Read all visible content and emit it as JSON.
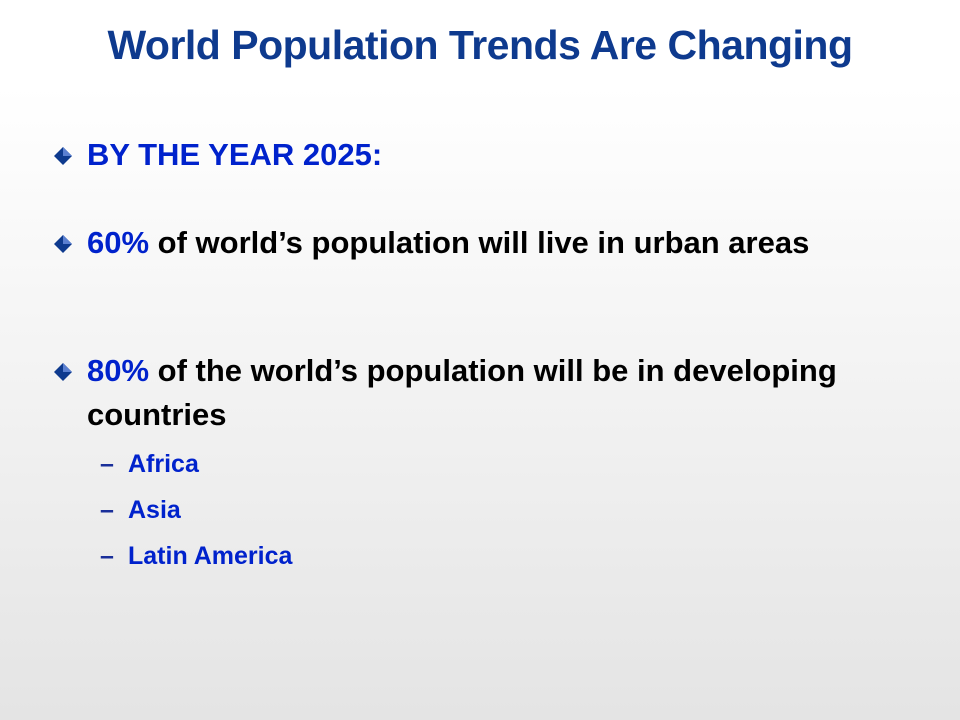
{
  "slide": {
    "title": "World Population Trends Are Changing",
    "bullets": [
      {
        "highlight": "BY THE YEAR 2025:",
        "rest": ""
      },
      {
        "highlight": "60%",
        "rest": " of world’s population will live in urban areas"
      },
      {
        "highlight": "80%",
        "rest": " of the world’s population will be in developing countries"
      }
    ],
    "sub_bullets": [
      "Africa",
      "Asia",
      "Latin America"
    ],
    "dash": "–"
  },
  "colors": {
    "title": "#0e3a8e",
    "highlight": "#0022cc",
    "bullet_marker": "#0e3a8e"
  },
  "icons": {
    "bullet_marker": "diamond-bullet-icon"
  }
}
